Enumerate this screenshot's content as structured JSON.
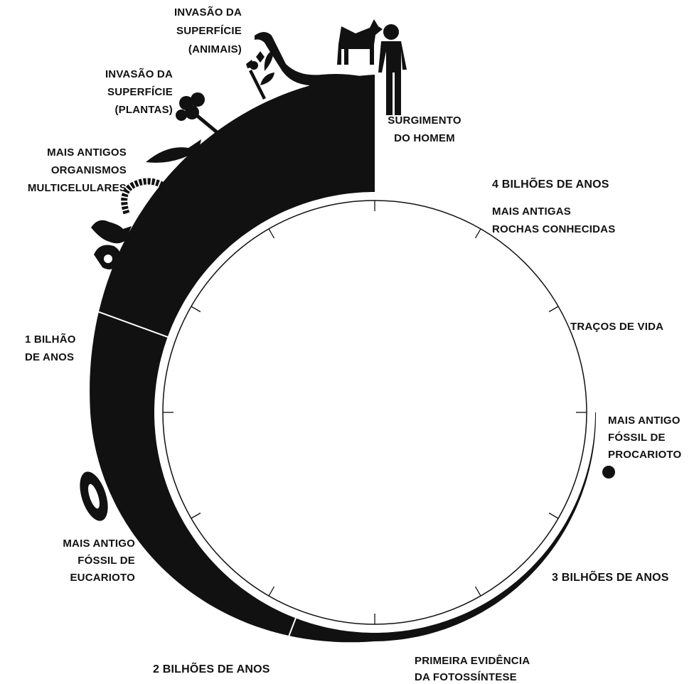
{
  "labels": [
    {
      "lines": [
        "INVASÃO DA",
        "SUPERFÍCIE",
        "(ANIMAIS)"
      ]
    },
    {
      "lines": [
        "INVASÃO DA",
        "SUPERFÍCIE",
        "(PLANTAS)"
      ]
    },
    {
      "lines": [
        "MAIS ANTIGOS",
        "ORGANISMOS",
        "MULTICELULARES"
      ]
    },
    {
      "lines": [
        "SURGIMENTO",
        "DO HOMEM"
      ]
    },
    {
      "lines": [
        "4 BILHÕES DE ANOS"
      ]
    },
    {
      "lines": [
        "MAIS ANTIGAS",
        "ROCHAS CONHECIDAS"
      ]
    },
    {
      "lines": [
        "TRAÇOS DE VIDA"
      ]
    },
    {
      "lines": [
        "MAIS ANTIGO",
        "FÓSSIL DE",
        "PROCARIOTO"
      ]
    },
    {
      "lines": [
        "1 BILHÃO",
        "DE ANOS"
      ]
    },
    {
      "lines": [
        "MAIS ANTIGO",
        "FÓSSIL DE",
        "EUCARIOTO"
      ]
    },
    {
      "lines": [
        "3 BILHÕES DE ANOS"
      ]
    },
    {
      "lines": [
        "2 BILHÕES DE ANOS"
      ]
    },
    {
      "lines": [
        "PRIMEIRA EVIDÊNCIA",
        "DA FOTOSSÍNTESE"
      ]
    }
  ]
}
